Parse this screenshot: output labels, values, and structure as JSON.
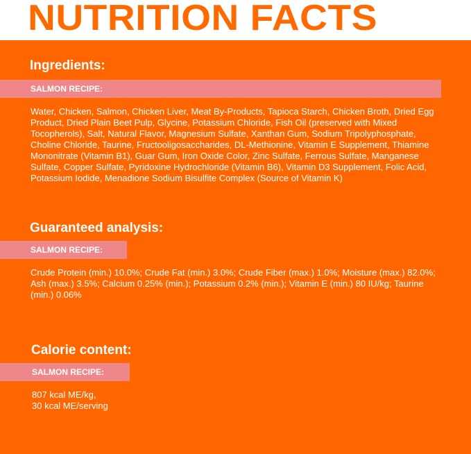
{
  "title": "NUTRITION FACTS",
  "colors": {
    "orange": "#ff6600",
    "pink": "#ee868a",
    "text": "#ffffff"
  },
  "ingredients": {
    "heading": "Ingredients:",
    "recipe_label": "SALMON RECIPE:",
    "text": "Water, Chicken, Salmon, Chicken Liver, Meat By-Products, Tapioca Starch, Chicken Broth, Dried Egg Product, Dried Plain Beet Pulp, Glycine, Potassium Chloride, Fish Oil (preserved with Mixed Tocopherols), Salt, Natural Flavor, Magnesium Sulfate, Xanthan Gum, Sodium Tripolyphosphate, Choline Chloride, Taurine, Fructooligosaccharides, DL-Methionine, Vitamin E Supplement, Thiamine Mononitrate (Vitamin B1), Guar Gum, Iron Oxide Color, Zinc Sulfate, Ferrous Sulfate, Manganese Sulfate, Copper Sulfate, Pyridoxine Hydrochloride (Vitamin B6), Vitamin D3 Supplement, Folic Acid, Potassium Iodide, Menadione Sodium Bisulfite Complex (Source of Vitamin K)"
  },
  "analysis": {
    "heading": "Guaranteed analysis:",
    "recipe_label": "SALMON RECIPE:",
    "text": "Crude Protein (min.) 10.0%; Crude Fat (min.) 3.0%; Crude Fiber (max.) 1.0%; Moisture (max.) 82.0%; Ash (max.) 3.5%; Calcium 0.25% (min.); Potassium 0.2% (min.); Vitamin E (min.) 80 IU/kg; Taurine (min.) 0.06%"
  },
  "calories": {
    "heading": "Calorie content:",
    "recipe_label": "SALMON RECIPE:",
    "line1": "807 kcal ME/kg,",
    "line2": "30 kcal ME/serving"
  }
}
